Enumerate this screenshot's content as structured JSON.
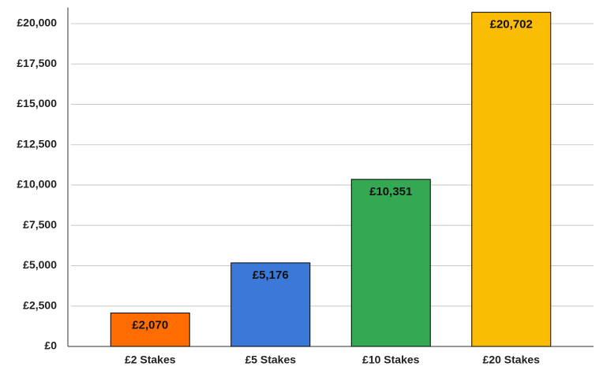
{
  "chart_data": {
    "type": "bar",
    "categories": [
      "£2 Stakes",
      "£5 Stakes",
      "£10 Stakes",
      "£20 Stakes"
    ],
    "values": [
      2070,
      5176,
      10351,
      20702
    ],
    "value_labels": [
      "£2,070",
      "£5,176",
      "£10,351",
      "£20,702"
    ],
    "colors": [
      "#ff6d01",
      "#3c78d8",
      "#34a853",
      "#fbbc04"
    ],
    "ylim": [
      0,
      21000
    ],
    "yticks": [
      {
        "value": 0,
        "label": "£0"
      },
      {
        "value": 2500,
        "label": "£2,500"
      },
      {
        "value": 5000,
        "label": "£5,000"
      },
      {
        "value": 7500,
        "label": "£7,500"
      },
      {
        "value": 10000,
        "label": "£10,000"
      },
      {
        "value": 12500,
        "label": "£12,500"
      },
      {
        "value": 15000,
        "label": "£15,000"
      },
      {
        "value": 17500,
        "label": "£17,500"
      },
      {
        "value": 20000,
        "label": "£20,000"
      }
    ],
    "grid": true
  }
}
